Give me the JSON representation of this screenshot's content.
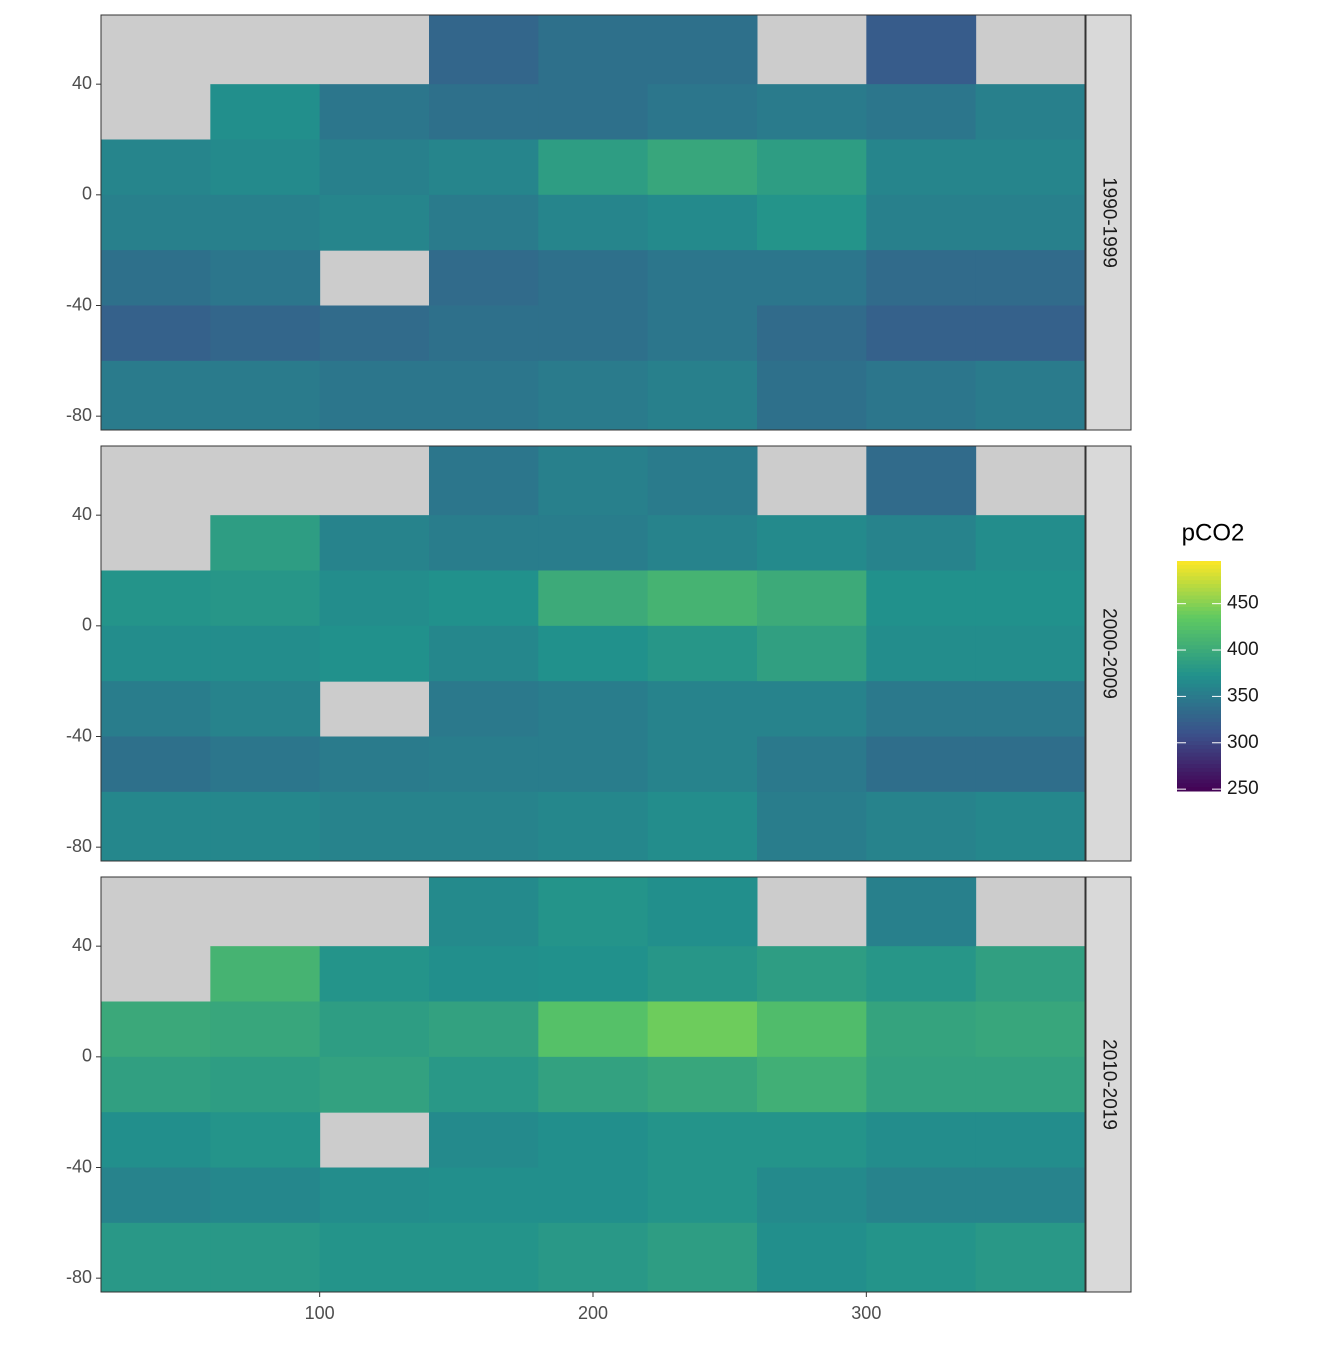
{
  "chart_data": {
    "type": "heatmap",
    "colormap": "viridis",
    "legend_title": "pCO2",
    "colorbar_lim": [
      248,
      496
    ],
    "colorbar_ticks": [
      250,
      300,
      350,
      400,
      450
    ],
    "xlim": [
      20,
      380
    ],
    "xticks": [
      100,
      200,
      300
    ],
    "ylim": [
      -85,
      65
    ],
    "yticks": [
      -80,
      -40,
      0,
      40
    ],
    "lon_bins": [
      20,
      60,
      100,
      140,
      180,
      220,
      260,
      300,
      340,
      380
    ],
    "lat_bins": [
      65,
      40,
      20,
      0,
      -20,
      -40,
      -60,
      -85
    ],
    "facets": [
      {
        "label": "1990-1999",
        "values": [
          [
            null,
            null,
            null,
            330,
            340,
            340,
            null,
            320,
            null
          ],
          [
            null,
            370,
            345,
            340,
            340,
            345,
            350,
            345,
            355
          ],
          [
            360,
            365,
            355,
            360,
            385,
            395,
            385,
            360,
            360
          ],
          [
            355,
            355,
            360,
            350,
            360,
            365,
            375,
            355,
            355
          ],
          [
            340,
            345,
            null,
            335,
            340,
            345,
            345,
            335,
            335
          ],
          [
            325,
            330,
            335,
            340,
            340,
            345,
            335,
            325,
            325
          ],
          [
            350,
            350,
            345,
            345,
            350,
            355,
            340,
            345,
            350
          ]
        ]
      },
      {
        "label": "2000-2009",
        "values": [
          [
            null,
            null,
            null,
            345,
            355,
            350,
            null,
            335,
            null
          ],
          [
            null,
            385,
            358,
            352,
            352,
            358,
            365,
            358,
            368
          ],
          [
            375,
            378,
            368,
            372,
            400,
            410,
            400,
            372,
            372
          ],
          [
            368,
            368,
            372,
            362,
            372,
            378,
            388,
            368,
            368
          ],
          [
            352,
            358,
            null,
            348,
            352,
            358,
            358,
            348,
            348
          ],
          [
            340,
            345,
            350,
            352,
            352,
            358,
            348,
            338,
            338
          ],
          [
            362,
            362,
            358,
            358,
            362,
            368,
            352,
            358,
            362
          ]
        ]
      },
      {
        "label": "2010-2019",
        "values": [
          [
            null,
            null,
            null,
            365,
            375,
            370,
            null,
            355,
            null
          ],
          [
            null,
            410,
            375,
            370,
            372,
            378,
            385,
            378,
            388
          ],
          [
            398,
            395,
            385,
            390,
            425,
            440,
            420,
            392,
            395
          ],
          [
            388,
            385,
            390,
            380,
            390,
            395,
            405,
            390,
            390
          ],
          [
            370,
            375,
            null,
            365,
            370,
            375,
            375,
            368,
            368
          ],
          [
            358,
            362,
            368,
            370,
            370,
            375,
            365,
            358,
            358
          ],
          [
            380,
            380,
            375,
            375,
            380,
            385,
            370,
            375,
            380
          ]
        ]
      }
    ]
  }
}
